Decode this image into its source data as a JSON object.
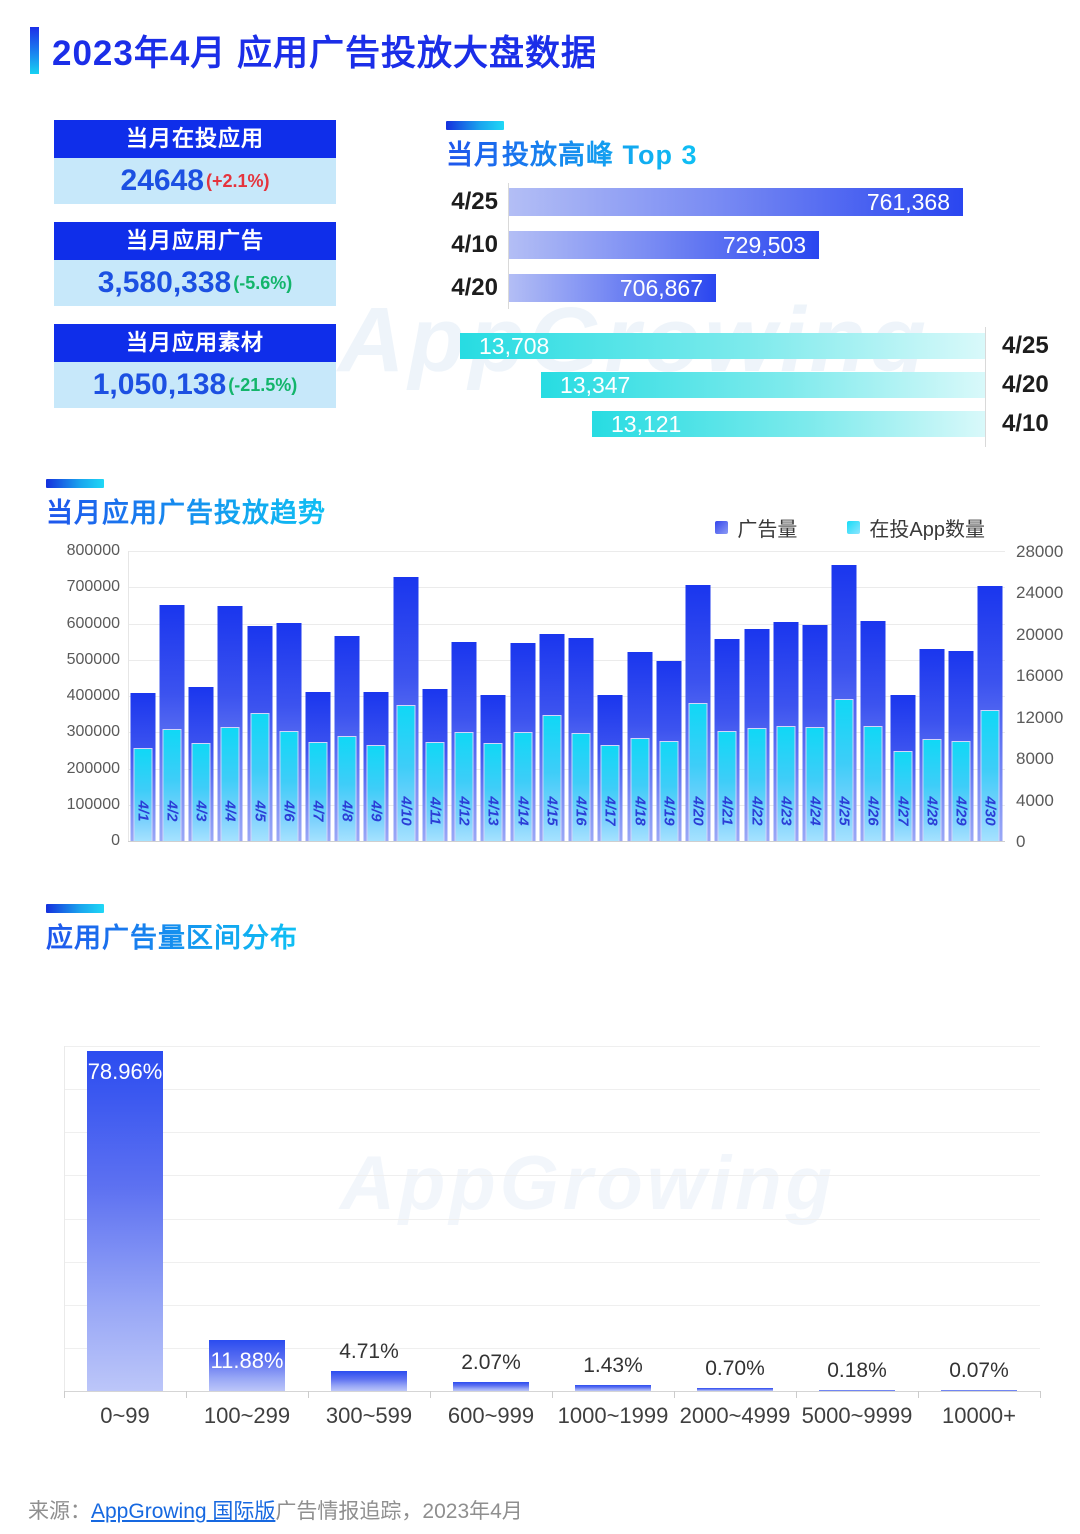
{
  "page": {
    "title": "2023年4月 应用广告投放大盘数据"
  },
  "stat_cards": [
    {
      "label": "当月在投应用",
      "value": "24648",
      "change": "(+2.1%)",
      "change_color": "#e5343d"
    },
    {
      "label": "当月应用广告",
      "value": "3,580,338",
      "change": "(-5.6%)",
      "change_color": "#13b56b"
    },
    {
      "label": "当月应用素材",
      "value": "1,050,138",
      "change": "(-21.5%)",
      "change_color": "#13b56b"
    }
  ],
  "sections": {
    "peak_title": "当月投放高峰 Top 3",
    "trend_title": "当月应用广告投放趋势",
    "distribution_title": "应用广告量区间分布"
  },
  "legend": {
    "ads": "广告量",
    "apps": "在投App数量",
    "ads_color": "#4456ee",
    "apps_color": "#2ce1f8"
  },
  "watermark_text": "AppGrowing",
  "footer": {
    "prefix": "来源：",
    "link": "AppGrowing 国际版",
    "suffix": "广告情报追踪，2023年4月"
  },
  "colors": {
    "card_header_bg": "#0f2eea",
    "card_value_bg": "#c7e8fa",
    "value_blue": "#1c50e2",
    "title_blue": "#1b2ee8",
    "peak_bar_blue": "#2a46f0",
    "peak_bar_teal": "#27dce2",
    "trend_bar_blue": "#1a36ee",
    "trend_bar_cyan": "#10d8f6",
    "dist_bar_blue": "#2b4cf0"
  },
  "chart_data": [
    {
      "id": "peak_ads",
      "type": "bar",
      "orientation": "horizontal",
      "title": "当月投放高峰 Top 3（广告量）",
      "categories": [
        "4/25",
        "4/10",
        "4/20"
      ],
      "values": [
        761368,
        729503,
        706867
      ],
      "value_labels": [
        "761,368",
        "729,503",
        "706,867"
      ],
      "legend_position": "none",
      "grid": false
    },
    {
      "id": "peak_apps",
      "type": "bar",
      "orientation": "horizontal-right",
      "title": "当月投放高峰 Top 3（在投App数量）",
      "categories": [
        "4/25",
        "4/20",
        "4/10"
      ],
      "values": [
        13708,
        13347,
        13121
      ],
      "value_labels": [
        "13,708",
        "13,347",
        "13,121"
      ],
      "legend_position": "none",
      "grid": false
    },
    {
      "id": "trend",
      "type": "bar",
      "title": "当月应用广告投放趋势",
      "categories": [
        "4/1",
        "4/2",
        "4/3",
        "4/4",
        "4/5",
        "4/6",
        "4/7",
        "4/8",
        "4/9",
        "4/10",
        "4/11",
        "4/12",
        "4/13",
        "4/14",
        "4/15",
        "4/16",
        "4/17",
        "4/18",
        "4/19",
        "4/20",
        "4/21",
        "4/22",
        "4/23",
        "4/24",
        "4/25",
        "4/26",
        "4/27",
        "4/28",
        "4/29",
        "4/30"
      ],
      "series": [
        {
          "name": "广告量",
          "axis": "left",
          "values": [
            408000,
            651000,
            425000,
            648000,
            593000,
            602000,
            412000,
            566000,
            412000,
            729503,
            419000,
            549000,
            404000,
            545000,
            572000,
            560000,
            402000,
            522000,
            497000,
            706867,
            557000,
            586000,
            603000,
            596000,
            761368,
            608000,
            403000,
            531000,
            524000,
            704000
          ]
        },
        {
          "name": "在投App数量",
          "axis": "right",
          "values": [
            9000,
            10800,
            9500,
            11000,
            12400,
            10600,
            9600,
            10100,
            9300,
            13121,
            9600,
            10500,
            9500,
            10500,
            12150,
            10400,
            9250,
            9950,
            9650,
            13347,
            10620,
            10900,
            11130,
            10980,
            13708,
            11100,
            8650,
            9850,
            9700,
            12700
          ]
        }
      ],
      "left_axis": {
        "min": 0,
        "max": 800000,
        "ticks": [
          "800000",
          "700000",
          "600000",
          "500000",
          "400000",
          "300000",
          "200000",
          "100000",
          "0"
        ]
      },
      "right_axis": {
        "min": 0,
        "max": 28000,
        "ticks": [
          "28000",
          "24000",
          "20000",
          "16000",
          "12000",
          "8000",
          "4000",
          "0"
        ]
      },
      "legend_position": "top-right",
      "grid": true
    },
    {
      "id": "distribution",
      "type": "bar",
      "title": "应用广告量区间分布",
      "categories": [
        "0~99",
        "100~299",
        "300~599",
        "600~999",
        "1000~1999",
        "2000~4999",
        "5000~9999",
        "10000+"
      ],
      "values": [
        78.96,
        11.88,
        4.71,
        2.07,
        1.43,
        0.7,
        0.18,
        0.07
      ],
      "value_labels": [
        "78.96%",
        "11.88%",
        "4.71%",
        "2.07%",
        "1.43%",
        "0.70%",
        "0.18%",
        "0.07%"
      ],
      "ylim": [
        0,
        80
      ],
      "grid": true,
      "legend_position": "none"
    }
  ]
}
